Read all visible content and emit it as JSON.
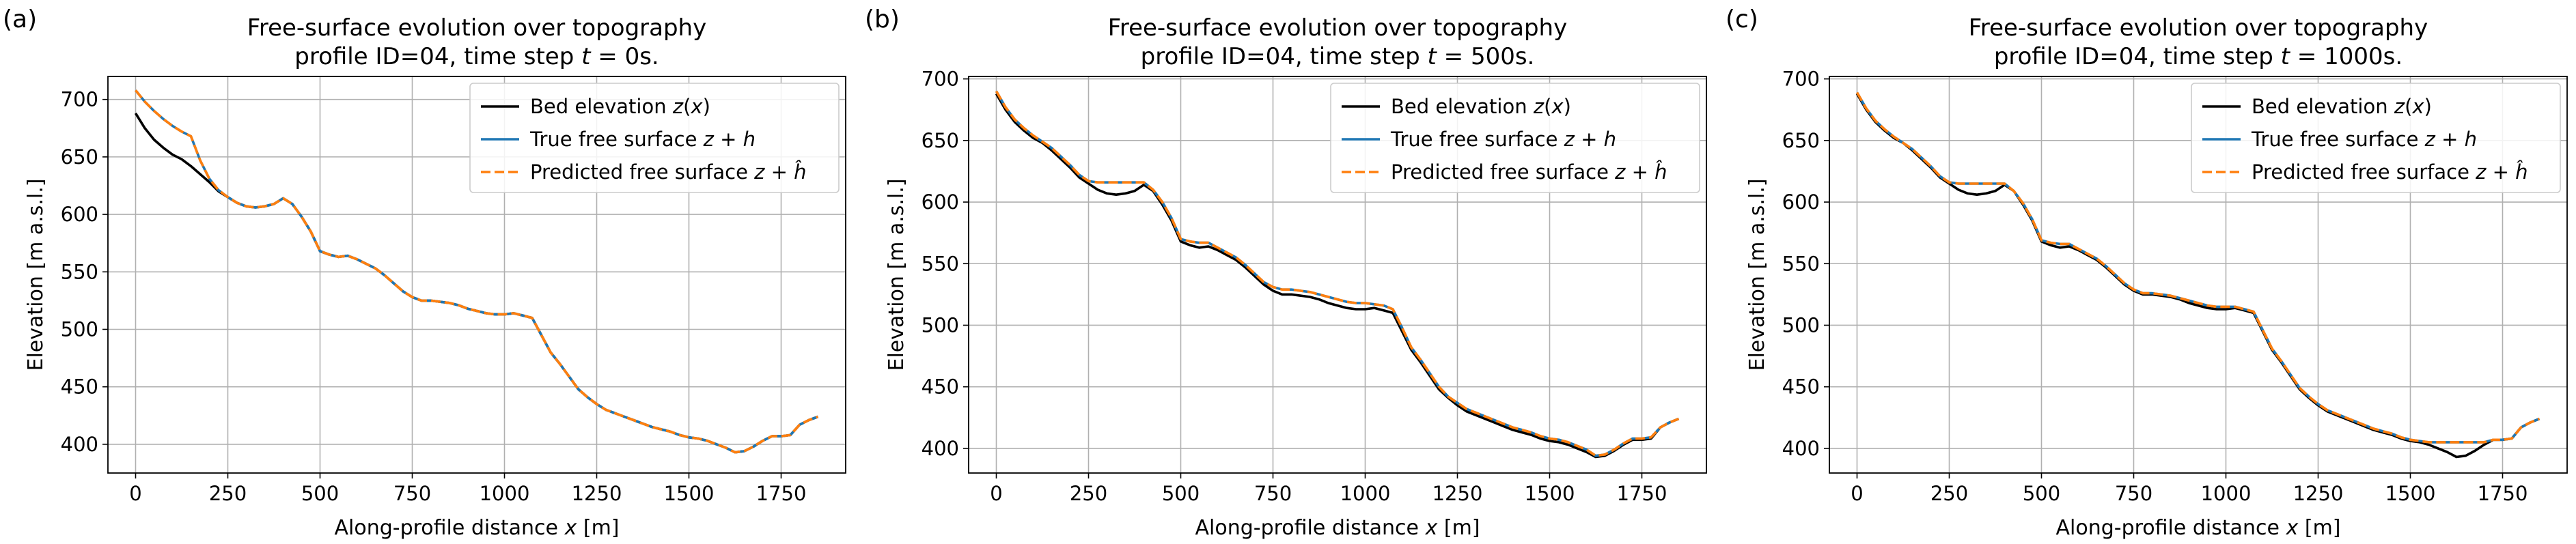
{
  "chart_data": [
    {
      "type": "line",
      "panel_label": "(a)",
      "title": "Free-surface evolution over topography",
      "subtitle": "profile ID=04, time step t = 0s.",
      "xlabel": "Along-profile distance x [m]",
      "ylabel": "Elevation [m a.s.l.]",
      "xlim": [
        -75,
        1925
      ],
      "ylim": [
        375,
        720
      ],
      "xticks": [
        0,
        250,
        500,
        750,
        1000,
        1250,
        1500,
        1750
      ],
      "yticks": [
        400,
        450,
        500,
        550,
        600,
        650,
        700
      ],
      "grid": true,
      "legend_position": "top-right",
      "x": [
        0,
        25,
        50,
        75,
        100,
        125,
        150,
        175,
        200,
        225,
        250,
        275,
        300,
        325,
        350,
        375,
        400,
        425,
        450,
        475,
        500,
        525,
        550,
        575,
        600,
        625,
        650,
        675,
        700,
        725,
        750,
        775,
        800,
        825,
        850,
        875,
        900,
        925,
        950,
        975,
        1000,
        1025,
        1050,
        1075,
        1100,
        1125,
        1150,
        1175,
        1200,
        1225,
        1250,
        1275,
        1300,
        1325,
        1350,
        1375,
        1400,
        1425,
        1450,
        1475,
        1500,
        1525,
        1550,
        1575,
        1600,
        1625,
        1650,
        1675,
        1700,
        1725,
        1750,
        1775,
        1800,
        1825,
        1850
      ],
      "series": [
        {
          "name": "Bed elevation z(x)",
          "color": "#000000",
          "style": "solid",
          "values": [
            688,
            675,
            665,
            658,
            652,
            648,
            642,
            635,
            628,
            620,
            615,
            610,
            607,
            606,
            607,
            609,
            614,
            609,
            598,
            585,
            568,
            565,
            563,
            564,
            561,
            557,
            553,
            547,
            540,
            533,
            528,
            525,
            525,
            524,
            523,
            521,
            518,
            516,
            514,
            513,
            513,
            514,
            512,
            510,
            495,
            480,
            470,
            459,
            448,
            441,
            435,
            430,
            427,
            424,
            421,
            418,
            415,
            413,
            411,
            408,
            406,
            405,
            403,
            400,
            397,
            393,
            394,
            398,
            403,
            407,
            407,
            408,
            417,
            421,
            424
          ]
        },
        {
          "name": "True free surface z + h",
          "color": "#1f77b4",
          "style": "solid",
          "values": [
            708,
            698,
            690,
            683,
            677,
            672,
            668,
            647,
            631,
            621,
            615,
            610,
            607,
            606,
            607,
            609,
            614,
            609,
            598,
            585,
            568,
            565,
            563,
            564,
            561,
            557,
            553,
            547,
            540,
            533,
            528,
            525,
            525,
            524,
            523,
            521,
            518,
            516,
            514,
            513,
            513,
            514,
            512,
            510,
            495,
            480,
            470,
            459,
            448,
            441,
            435,
            430,
            427,
            424,
            421,
            418,
            415,
            413,
            411,
            408,
            406,
            405,
            403,
            400,
            397,
            393,
            394,
            398,
            403,
            407,
            407,
            408,
            417,
            421,
            424
          ]
        },
        {
          "name": "Predicted free surface z + ĥ",
          "color": "#ff7f0e",
          "style": "dashed",
          "values": [
            708,
            698,
            690,
            683,
            677,
            672,
            668,
            647,
            631,
            621,
            615,
            610,
            607,
            606,
            607,
            609,
            614,
            609,
            598,
            585,
            568,
            565,
            563,
            564,
            561,
            557,
            553,
            547,
            540,
            533,
            528,
            525,
            525,
            524,
            523,
            521,
            518,
            516,
            514,
            513,
            513,
            514,
            512,
            510,
            495,
            480,
            470,
            459,
            448,
            441,
            435,
            430,
            427,
            424,
            421,
            418,
            415,
            413,
            411,
            408,
            406,
            405,
            403,
            400,
            397,
            393,
            394,
            398,
            403,
            407,
            407,
            408,
            417,
            421,
            424
          ]
        }
      ]
    },
    {
      "type": "line",
      "panel_label": "(b)",
      "title": "Free-surface evolution over topography",
      "subtitle": "profile ID=04, time step t = 500s.",
      "xlabel": "Along-profile distance x [m]",
      "ylabel": "Elevation [m a.s.l.]",
      "xlim": [
        -75,
        1925
      ],
      "ylim": [
        380,
        702
      ],
      "xticks": [
        0,
        250,
        500,
        750,
        1000,
        1250,
        1500,
        1750
      ],
      "yticks": [
        400,
        450,
        500,
        550,
        600,
        650,
        700
      ],
      "grid": true,
      "legend_position": "top-right",
      "x": [
        0,
        25,
        50,
        75,
        100,
        125,
        150,
        175,
        200,
        225,
        250,
        275,
        300,
        325,
        350,
        375,
        400,
        425,
        450,
        475,
        500,
        525,
        550,
        575,
        600,
        625,
        650,
        675,
        700,
        725,
        750,
        775,
        800,
        825,
        850,
        875,
        900,
        925,
        950,
        975,
        1000,
        1025,
        1050,
        1075,
        1100,
        1125,
        1150,
        1175,
        1200,
        1225,
        1250,
        1275,
        1300,
        1325,
        1350,
        1375,
        1400,
        1425,
        1450,
        1475,
        1500,
        1525,
        1550,
        1575,
        1600,
        1625,
        1650,
        1675,
        1700,
        1725,
        1750,
        1775,
        1800,
        1825,
        1850
      ],
      "series": [
        {
          "name": "Bed elevation z(x)",
          "color": "#000000",
          "style": "solid",
          "values": [
            688,
            675,
            665,
            658,
            652,
            648,
            642,
            635,
            628,
            620,
            615,
            610,
            607,
            606,
            607,
            609,
            614,
            609,
            598,
            585,
            568,
            565,
            563,
            564,
            561,
            557,
            553,
            547,
            540,
            533,
            528,
            525,
            525,
            524,
            523,
            521,
            518,
            516,
            514,
            513,
            513,
            514,
            512,
            510,
            495,
            480,
            470,
            459,
            448,
            441,
            435,
            430,
            427,
            424,
            421,
            418,
            415,
            413,
            411,
            408,
            406,
            405,
            403,
            400,
            397,
            393,
            394,
            398,
            403,
            407,
            407,
            408,
            417,
            421,
            424
          ]
        },
        {
          "name": "True free surface z + h",
          "color": "#1f77b4",
          "style": "solid",
          "values": [
            690,
            677,
            667,
            660,
            654,
            649,
            644,
            637,
            630,
            622,
            617,
            616,
            616,
            616,
            616,
            616,
            616,
            610,
            600,
            587,
            570,
            568,
            567,
            567,
            563,
            559,
            555,
            549,
            542,
            535,
            531,
            529,
            529,
            528,
            527,
            525,
            523,
            521,
            519,
            518,
            518,
            517,
            516,
            513,
            498,
            482,
            472,
            461,
            450,
            442,
            437,
            432,
            429,
            426,
            423,
            420,
            417,
            415,
            413,
            410,
            408,
            407,
            405,
            402,
            399,
            394,
            395,
            399,
            404,
            408,
            408,
            409,
            417,
            421,
            424
          ]
        },
        {
          "name": "Predicted free surface z + ĥ",
          "color": "#ff7f0e",
          "style": "dashed",
          "values": [
            690,
            677,
            667,
            660,
            654,
            649,
            644,
            637,
            630,
            622,
            617,
            616,
            616,
            616,
            616,
            616,
            616,
            610,
            600,
            587,
            570,
            568,
            567,
            567,
            563,
            559,
            555,
            549,
            542,
            535,
            531,
            529,
            529,
            528,
            527,
            525,
            523,
            521,
            519,
            518,
            518,
            517,
            516,
            513,
            498,
            482,
            472,
            461,
            450,
            442,
            437,
            432,
            429,
            426,
            423,
            420,
            417,
            415,
            413,
            410,
            408,
            407,
            405,
            402,
            399,
            394,
            395,
            399,
            404,
            408,
            408,
            409,
            417,
            421,
            424
          ]
        }
      ]
    },
    {
      "type": "line",
      "panel_label": "(c)",
      "title": "Free-surface evolution over topography",
      "subtitle": "profile ID=04, time step t = 1000s.",
      "xlabel": "Along-profile distance x [m]",
      "ylabel": "Elevation [m a.s.l.]",
      "xlim": [
        -75,
        1925
      ],
      "ylim": [
        380,
        702
      ],
      "xticks": [
        0,
        250,
        500,
        750,
        1000,
        1250,
        1500,
        1750
      ],
      "yticks": [
        400,
        450,
        500,
        550,
        600,
        650,
        700
      ],
      "grid": true,
      "legend_position": "top-right",
      "x": [
        0,
        25,
        50,
        75,
        100,
        125,
        150,
        175,
        200,
        225,
        250,
        275,
        300,
        325,
        350,
        375,
        400,
        425,
        450,
        475,
        500,
        525,
        550,
        575,
        600,
        625,
        650,
        675,
        700,
        725,
        750,
        775,
        800,
        825,
        850,
        875,
        900,
        925,
        950,
        975,
        1000,
        1025,
        1050,
        1075,
        1100,
        1125,
        1150,
        1175,
        1200,
        1225,
        1250,
        1275,
        1300,
        1325,
        1350,
        1375,
        1400,
        1425,
        1450,
        1475,
        1500,
        1525,
        1550,
        1575,
        1600,
        1625,
        1650,
        1675,
        1700,
        1725,
        1750,
        1775,
        1800,
        1825,
        1850
      ],
      "series": [
        {
          "name": "Bed elevation z(x)",
          "color": "#000000",
          "style": "solid",
          "values": [
            688,
            675,
            665,
            658,
            652,
            648,
            642,
            635,
            628,
            620,
            615,
            610,
            607,
            606,
            607,
            609,
            614,
            609,
            598,
            585,
            568,
            565,
            563,
            564,
            561,
            557,
            553,
            547,
            540,
            533,
            528,
            525,
            525,
            524,
            523,
            521,
            518,
            516,
            514,
            513,
            513,
            514,
            512,
            510,
            495,
            480,
            470,
            459,
            448,
            441,
            435,
            430,
            427,
            424,
            421,
            418,
            415,
            413,
            411,
            408,
            406,
            405,
            403,
            400,
            397,
            393,
            394,
            398,
            403,
            407,
            407,
            408,
            417,
            421,
            424
          ]
        },
        {
          "name": "True free surface z + h",
          "color": "#1f77b4",
          "style": "solid",
          "values": [
            689,
            676,
            666,
            659,
            653,
            648,
            643,
            636,
            629,
            621,
            616,
            615,
            615,
            615,
            615,
            615,
            615,
            609,
            599,
            586,
            569,
            567,
            566,
            566,
            562,
            558,
            554,
            548,
            541,
            534,
            529,
            526,
            526,
            525,
            524,
            522,
            520,
            518,
            516,
            515,
            515,
            515,
            513,
            511,
            496,
            481,
            471,
            460,
            449,
            442,
            436,
            431,
            428,
            425,
            422,
            419,
            416,
            414,
            412,
            409,
            407,
            406,
            405,
            405,
            405,
            405,
            405,
            405,
            405,
            407,
            407,
            408,
            417,
            421,
            424
          ]
        },
        {
          "name": "Predicted free surface z + ĥ",
          "color": "#ff7f0e",
          "style": "dashed",
          "values": [
            689,
            676,
            666,
            659,
            653,
            648,
            643,
            636,
            629,
            621,
            616,
            615,
            615,
            615,
            615,
            615,
            615,
            609,
            599,
            586,
            569,
            567,
            566,
            566,
            562,
            558,
            554,
            548,
            541,
            534,
            529,
            526,
            526,
            525,
            524,
            522,
            520,
            518,
            516,
            515,
            515,
            515,
            513,
            511,
            496,
            481,
            471,
            460,
            449,
            442,
            436,
            431,
            428,
            425,
            422,
            419,
            416,
            414,
            412,
            409,
            407,
            406,
            405,
            405,
            405,
            405,
            405,
            405,
            405,
            407,
            407,
            408,
            417,
            421,
            424
          ]
        }
      ]
    }
  ]
}
